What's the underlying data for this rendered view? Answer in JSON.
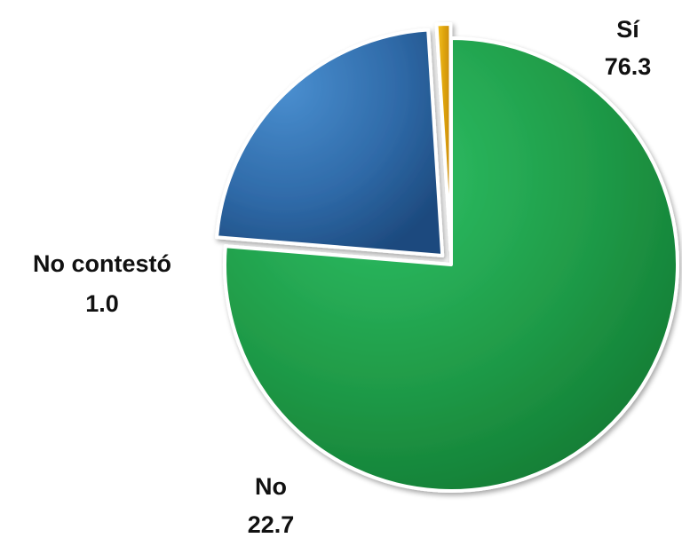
{
  "chart_data": {
    "type": "pie",
    "slices": [
      {
        "label": "Sí",
        "value": 76.3,
        "value_text": "76.3",
        "color": "#1f9a47"
      },
      {
        "label": "No",
        "value": 22.7,
        "value_text": "22.7",
        "color": "#2f6aa8"
      },
      {
        "label": "No contestó",
        "value": 1.0,
        "value_text": "1.0",
        "color": "#e8a90f"
      }
    ]
  }
}
